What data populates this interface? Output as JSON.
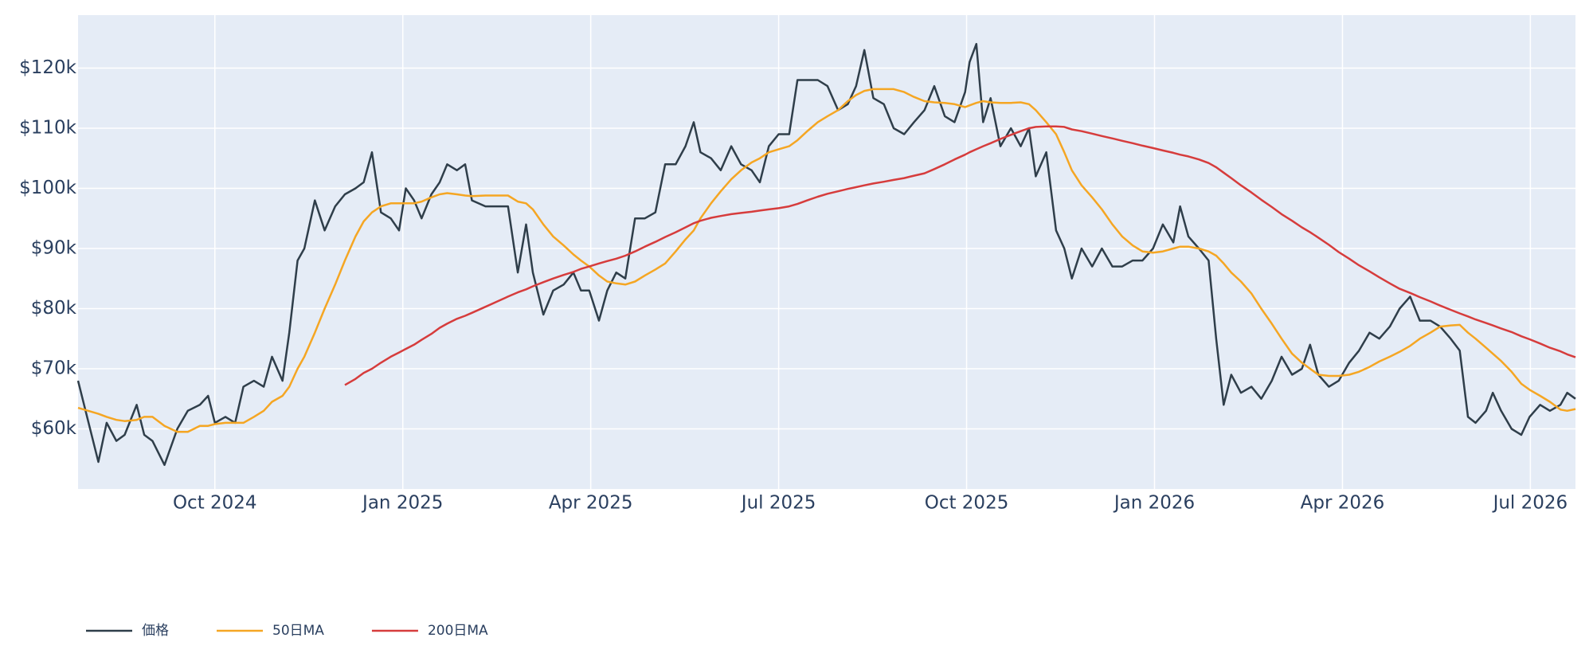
{
  "chart_data": {
    "type": "line",
    "xlim": [
      2024.568,
      2026.56
    ],
    "ylim": [
      50000,
      128800
    ],
    "xticks": [
      {
        "value": 2024.75,
        "label": "Oct 2024"
      },
      {
        "value": 2025.0,
        "label": "Jan 2025"
      },
      {
        "value": 2025.25,
        "label": "Apr 2025"
      },
      {
        "value": 2025.5,
        "label": "Jul 2025"
      },
      {
        "value": 2025.75,
        "label": "Oct 2025"
      },
      {
        "value": 2026.0,
        "label": "Jan 2026"
      },
      {
        "value": 2026.25,
        "label": "Apr 2026"
      },
      {
        "value": 2026.5,
        "label": "Jul 2026"
      }
    ],
    "yticks": [
      {
        "value": 60000,
        "label": "$60k"
      },
      {
        "value": 70000,
        "label": "$70k"
      },
      {
        "value": 80000,
        "label": "$80k"
      },
      {
        "value": 90000,
        "label": "$90k"
      },
      {
        "value": 100000,
        "label": "$100k"
      },
      {
        "value": 110000,
        "label": "$110k"
      },
      {
        "value": 120000,
        "label": "$120k"
      }
    ],
    "grid": true,
    "legend": "bottom-left",
    "x": [
      2024.568,
      2024.595,
      2024.606,
      2024.619,
      2024.63,
      2024.646,
      2024.656,
      2024.667,
      2024.683,
      2024.7,
      2024.714,
      2024.73,
      2024.741,
      2024.75,
      2024.764,
      2024.777,
      2024.788,
      2024.802,
      2024.815,
      2024.826,
      2024.84,
      2024.849,
      2024.86,
      2024.869,
      2024.883,
      2024.896,
      2024.91,
      2024.923,
      2024.937,
      2024.948,
      2024.959,
      2024.971,
      2024.984,
      2024.995,
      2025.004,
      2025.015,
      2025.025,
      2025.038,
      2025.049,
      2025.059,
      2025.072,
      2025.083,
      2025.092,
      2025.11,
      2025.126,
      2025.14,
      2025.153,
      2025.164,
      2025.173,
      2025.187,
      2025.2,
      2025.214,
      2025.227,
      2025.237,
      2025.248,
      2025.261,
      2025.272,
      2025.284,
      2025.296,
      2025.309,
      2025.322,
      2025.336,
      2025.349,
      2025.363,
      2025.376,
      2025.387,
      2025.396,
      2025.41,
      2025.423,
      2025.437,
      2025.45,
      2025.464,
      2025.475,
      2025.487,
      2025.5,
      2025.514,
      2025.525,
      2025.538,
      2025.552,
      2025.565,
      2025.579,
      2025.592,
      2025.603,
      2025.614,
      2025.626,
      2025.64,
      2025.653,
      2025.667,
      2025.68,
      2025.694,
      2025.707,
      2025.721,
      2025.734,
      2025.748,
      2025.754,
      2025.763,
      2025.772,
      2025.782,
      2025.795,
      2025.809,
      2025.822,
      2025.833,
      2025.842,
      2025.856,
      2025.869,
      2025.88,
      2025.89,
      2025.903,
      2025.917,
      2025.93,
      2025.944,
      2025.957,
      2025.971,
      2025.984,
      2025.998,
      2026.011,
      2026.025,
      2026.034,
      2026.045,
      2026.059,
      2026.072,
      2026.082,
      2026.092,
      2026.102,
      2026.115,
      2026.129,
      2026.142,
      2026.156,
      2026.169,
      2026.183,
      2026.196,
      2026.207,
      2026.218,
      2026.232,
      2026.245,
      2026.259,
      2026.272,
      2026.286,
      2026.299,
      2026.313,
      2026.326,
      2026.34,
      2026.353,
      2026.367,
      2026.38,
      2026.394,
      2026.406,
      2026.417,
      2026.427,
      2026.441,
      2026.45,
      2026.461,
      2026.475,
      2026.488,
      2026.499,
      2026.513,
      2026.526,
      2026.54,
      2026.549,
      2026.56
    ],
    "series": [
      {
        "name": "価格",
        "color": "#2f3e4a",
        "values": [
          68000,
          54500,
          61000,
          58000,
          59000,
          64000,
          59000,
          58000,
          54000,
          60000,
          63000,
          64000,
          65500,
          61000,
          62000,
          61000,
          67000,
          68000,
          67000,
          72000,
          68000,
          76000,
          88000,
          90000,
          98000,
          93000,
          97000,
          99000,
          100000,
          101000,
          106000,
          96000,
          95000,
          93000,
          100000,
          98000,
          95000,
          99000,
          101000,
          104000,
          103000,
          104000,
          98000,
          97000,
          97000,
          97000,
          86000,
          94000,
          86000,
          79000,
          83000,
          84000,
          86000,
          83000,
          83000,
          78000,
          83000,
          86000,
          85000,
          95000,
          95000,
          96000,
          104000,
          104000,
          107000,
          111000,
          106000,
          105000,
          103000,
          107000,
          104000,
          103000,
          101000,
          107000,
          109000,
          109000,
          118000,
          118000,
          118000,
          117000,
          113000,
          114000,
          117000,
          123000,
          115000,
          114000,
          110000,
          109000,
          111000,
          113000,
          117000,
          112000,
          111000,
          116000,
          121000,
          124000,
          111000,
          115000,
          107000,
          110000,
          107000,
          110000,
          102000,
          106000,
          93000,
          90000,
          85000,
          90000,
          87000,
          90000,
          87000,
          87000,
          88000,
          88000,
          90000,
          94000,
          91000,
          97000,
          92000,
          90000,
          88000,
          75000,
          64000,
          69000,
          66000,
          67000,
          65000,
          68000,
          72000,
          69000,
          70000,
          74000,
          69000,
          67000,
          68000,
          71000,
          73000,
          76000,
          75000,
          77000,
          80000,
          82000,
          78000,
          78000,
          77000,
          75000,
          73000,
          62000,
          61000,
          63000,
          66000,
          63000,
          60000,
          59000,
          62000,
          64000,
          63000,
          64000,
          66000,
          65000
        ]
      },
      {
        "name": "50日MA",
        "color": "#f5a623",
        "values": [
          63500,
          62500,
          62000,
          61500,
          61300,
          61500,
          62000,
          62000,
          60500,
          59500,
          59500,
          60500,
          60500,
          60800,
          61000,
          61000,
          61000,
          62000,
          63000,
          64500,
          65500,
          67000,
          70000,
          72000,
          76000,
          80000,
          84000,
          88000,
          92000,
          94500,
          96000,
          97000,
          97500,
          97500,
          97500,
          97500,
          97800,
          98500,
          99000,
          99200,
          99000,
          98800,
          98700,
          98800,
          98800,
          98800,
          97800,
          97500,
          96500,
          94000,
          92000,
          90500,
          89000,
          88000,
          87000,
          85500,
          84500,
          84200,
          84000,
          84500,
          85500,
          86500,
          87500,
          89500,
          91500,
          93000,
          95000,
          97500,
          99500,
          101500,
          103000,
          104300,
          105000,
          106000,
          106500,
          107000,
          108000,
          109500,
          111000,
          112000,
          113000,
          114500,
          115500,
          116200,
          116500,
          116500,
          116500,
          116000,
          115200,
          114500,
          114300,
          114200,
          114000,
          113500,
          113800,
          114200,
          114500,
          114300,
          114200,
          114200,
          114300,
          114000,
          113000,
          111000,
          109000,
          106000,
          103000,
          100500,
          98500,
          96500,
          94000,
          92000,
          90500,
          89500,
          89300,
          89500,
          90000,
          90300,
          90300,
          90000,
          89500,
          88800,
          87500,
          86000,
          84500,
          82500,
          80000,
          77500,
          75000,
          72500,
          71000,
          70000,
          69000,
          68800,
          68800,
          69000,
          69500,
          70300,
          71200,
          72000,
          72800,
          73800,
          75000,
          76000,
          77000,
          77200,
          77300,
          76000,
          75000,
          73500,
          72500,
          71300,
          69500,
          67500,
          66500,
          65500,
          64500,
          63200,
          63000,
          63300
        ]
      },
      {
        "name": "200日MA",
        "color": "#d63c3c",
        "values": [
          null,
          null,
          null,
          null,
          null,
          null,
          null,
          null,
          null,
          null,
          null,
          null,
          null,
          null,
          null,
          null,
          null,
          null,
          null,
          null,
          null,
          null,
          null,
          null,
          null,
          null,
          null,
          67300,
          68300,
          69300,
          70000,
          71000,
          72000,
          72700,
          73300,
          74000,
          74800,
          75800,
          76800,
          77500,
          78300,
          78800,
          79300,
          80300,
          81200,
          82000,
          82700,
          83200,
          83700,
          84400,
          85000,
          85600,
          86100,
          86600,
          87000,
          87500,
          87900,
          88300,
          88800,
          89500,
          90300,
          91100,
          91900,
          92700,
          93500,
          94200,
          94600,
          95100,
          95400,
          95700,
          95900,
          96100,
          96300,
          96500,
          96700,
          97000,
          97400,
          98000,
          98600,
          99100,
          99500,
          99900,
          100200,
          100500,
          100800,
          101100,
          101400,
          101700,
          102100,
          102500,
          103200,
          104000,
          104800,
          105600,
          106000,
          106500,
          107000,
          107500,
          108200,
          108900,
          109500,
          110000,
          110200,
          110300,
          110300,
          110200,
          109800,
          109500,
          109100,
          108700,
          108300,
          107900,
          107500,
          107100,
          106700,
          106300,
          105900,
          105600,
          105300,
          104800,
          104200,
          103500,
          102600,
          101700,
          100500,
          99300,
          98100,
          96900,
          95700,
          94600,
          93500,
          92700,
          91800,
          90600,
          89400,
          88300,
          87200,
          86200,
          85200,
          84200,
          83300,
          82600,
          81900,
          81200,
          80500,
          79800,
          79200,
          78700,
          78200,
          77600,
          77200,
          76700,
          76100,
          75400,
          74900,
          74200,
          73500,
          72900,
          72400,
          71900
        ]
      }
    ]
  }
}
